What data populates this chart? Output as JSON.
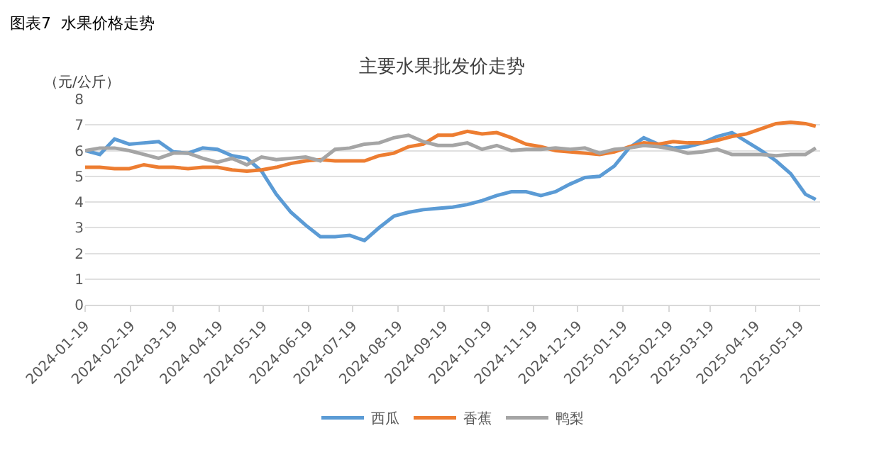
{
  "chart_data": {
    "type": "line",
    "title": "主要水果批发价走势",
    "ylabel": "（元/公斤）",
    "annotations": [
      "图表7  水果价格走势"
    ],
    "x": [
      "2024-01-19",
      "2024-01-29",
      "2024-02-08",
      "2024-02-18",
      "2024-02-28",
      "2024-03-09",
      "2024-03-19",
      "2024-03-29",
      "2024-04-08",
      "2024-04-18",
      "2024-04-28",
      "2024-05-08",
      "2024-05-18",
      "2024-05-28",
      "2024-06-07",
      "2024-06-17",
      "2024-06-27",
      "2024-07-07",
      "2024-07-17",
      "2024-07-27",
      "2024-08-06",
      "2024-08-16",
      "2024-08-26",
      "2024-09-05",
      "2024-09-15",
      "2024-09-25",
      "2024-10-05",
      "2024-10-15",
      "2024-10-25",
      "2024-11-04",
      "2024-11-14",
      "2024-11-24",
      "2024-12-04",
      "2024-12-14",
      "2024-12-24",
      "2025-01-03",
      "2025-01-13",
      "2025-01-23",
      "2025-02-02",
      "2025-02-12",
      "2025-02-22",
      "2025-03-04",
      "2025-03-14",
      "2025-03-24",
      "2025-04-03",
      "2025-04-13",
      "2025-04-23",
      "2025-05-03",
      "2025-05-13",
      "2025-05-23",
      "2025-05-30"
    ],
    "series": [
      {
        "name": "西瓜",
        "color": "#5b9bd5",
        "values": [
          6.0,
          5.85,
          6.45,
          6.25,
          6.3,
          6.35,
          5.95,
          5.9,
          6.1,
          6.05,
          5.8,
          5.7,
          5.2,
          4.3,
          3.6,
          3.1,
          2.65,
          2.65,
          2.7,
          2.5,
          3.0,
          3.45,
          3.6,
          3.7,
          3.75,
          3.8,
          3.9,
          4.05,
          4.25,
          4.4,
          4.4,
          4.25,
          4.4,
          4.7,
          4.95,
          5.0,
          5.4,
          6.1,
          6.5,
          6.25,
          6.1,
          6.15,
          6.3,
          6.55,
          6.7,
          6.35,
          6.0,
          5.6,
          5.1,
          4.3,
          4.1
        ]
      },
      {
        "name": "香蕉",
        "color": "#ed7d31",
        "values": [
          5.35,
          5.35,
          5.3,
          5.3,
          5.45,
          5.35,
          5.35,
          5.3,
          5.35,
          5.35,
          5.25,
          5.2,
          5.25,
          5.35,
          5.5,
          5.6,
          5.65,
          5.6,
          5.6,
          5.6,
          5.8,
          5.9,
          6.15,
          6.25,
          6.6,
          6.6,
          6.75,
          6.65,
          6.7,
          6.5,
          6.25,
          6.15,
          6.0,
          5.95,
          5.9,
          5.85,
          5.95,
          6.15,
          6.3,
          6.25,
          6.35,
          6.3,
          6.3,
          6.4,
          6.55,
          6.65,
          6.85,
          7.05,
          7.1,
          7.05,
          6.95
        ]
      },
      {
        "name": "鸭梨",
        "color": "#a5a5a5",
        "values": [
          6.0,
          6.1,
          6.1,
          6.0,
          5.85,
          5.7,
          5.9,
          5.9,
          5.7,
          5.55,
          5.7,
          5.45,
          5.75,
          5.65,
          5.7,
          5.75,
          5.6,
          6.05,
          6.1,
          6.25,
          6.3,
          6.5,
          6.6,
          6.35,
          6.2,
          6.2,
          6.3,
          6.05,
          6.2,
          6.0,
          6.05,
          6.05,
          6.1,
          6.05,
          6.1,
          5.9,
          6.05,
          6.1,
          6.2,
          6.15,
          6.05,
          5.9,
          5.95,
          6.05,
          5.85,
          5.85,
          5.85,
          5.8,
          5.85,
          5.85,
          6.1
        ]
      }
    ],
    "xlim": [
      "2024-01-19",
      "2025-06-02"
    ],
    "xticks": [
      "2024-01-19",
      "2024-02-19",
      "2024-03-19",
      "2024-04-19",
      "2024-05-19",
      "2024-06-19",
      "2024-07-19",
      "2024-08-19",
      "2024-09-19",
      "2024-10-19",
      "2024-11-19",
      "2024-12-19",
      "2025-01-19",
      "2025-02-19",
      "2025-03-19",
      "2025-04-19",
      "2025-05-19"
    ],
    "ylim": [
      0,
      8
    ],
    "yticks": [
      0,
      1,
      2,
      3,
      4,
      5,
      6,
      7,
      8
    ],
    "grid": "y",
    "legend": "bottom",
    "marker": "none",
    "line_style": "solid"
  }
}
